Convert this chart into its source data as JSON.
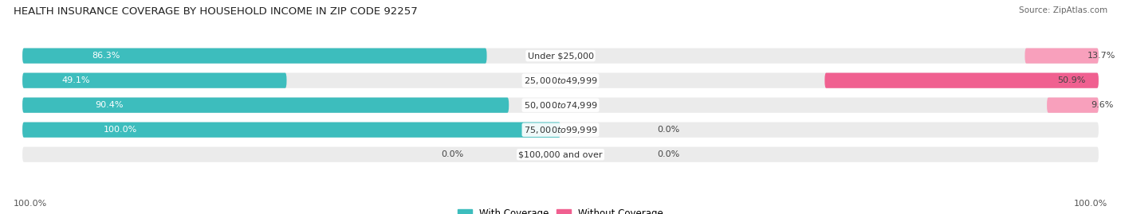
{
  "title": "HEALTH INSURANCE COVERAGE BY HOUSEHOLD INCOME IN ZIP CODE 92257",
  "source": "Source: ZipAtlas.com",
  "categories": [
    "Under $25,000",
    "$25,000 to $49,999",
    "$50,000 to $74,999",
    "$75,000 to $99,999",
    "$100,000 and over"
  ],
  "with_coverage": [
    86.3,
    49.1,
    90.4,
    100.0,
    0.0
  ],
  "without_coverage": [
    13.7,
    50.9,
    9.6,
    0.0,
    0.0
  ],
  "color_with": "#3dbdbd",
  "color_with_light": "#8ed4d4",
  "color_without": "#f06090",
  "color_without_light": "#f8a0bc",
  "bg_bar": "#ebebeb",
  "bg_fig": "#ffffff",
  "title_fontsize": 9.5,
  "label_fontsize": 8,
  "legend_fontsize": 8.5,
  "source_fontsize": 7.5,
  "bar_height": 0.62,
  "total_width": 100,
  "axis_label_left": "100.0%",
  "axis_label_right": "100.0%"
}
